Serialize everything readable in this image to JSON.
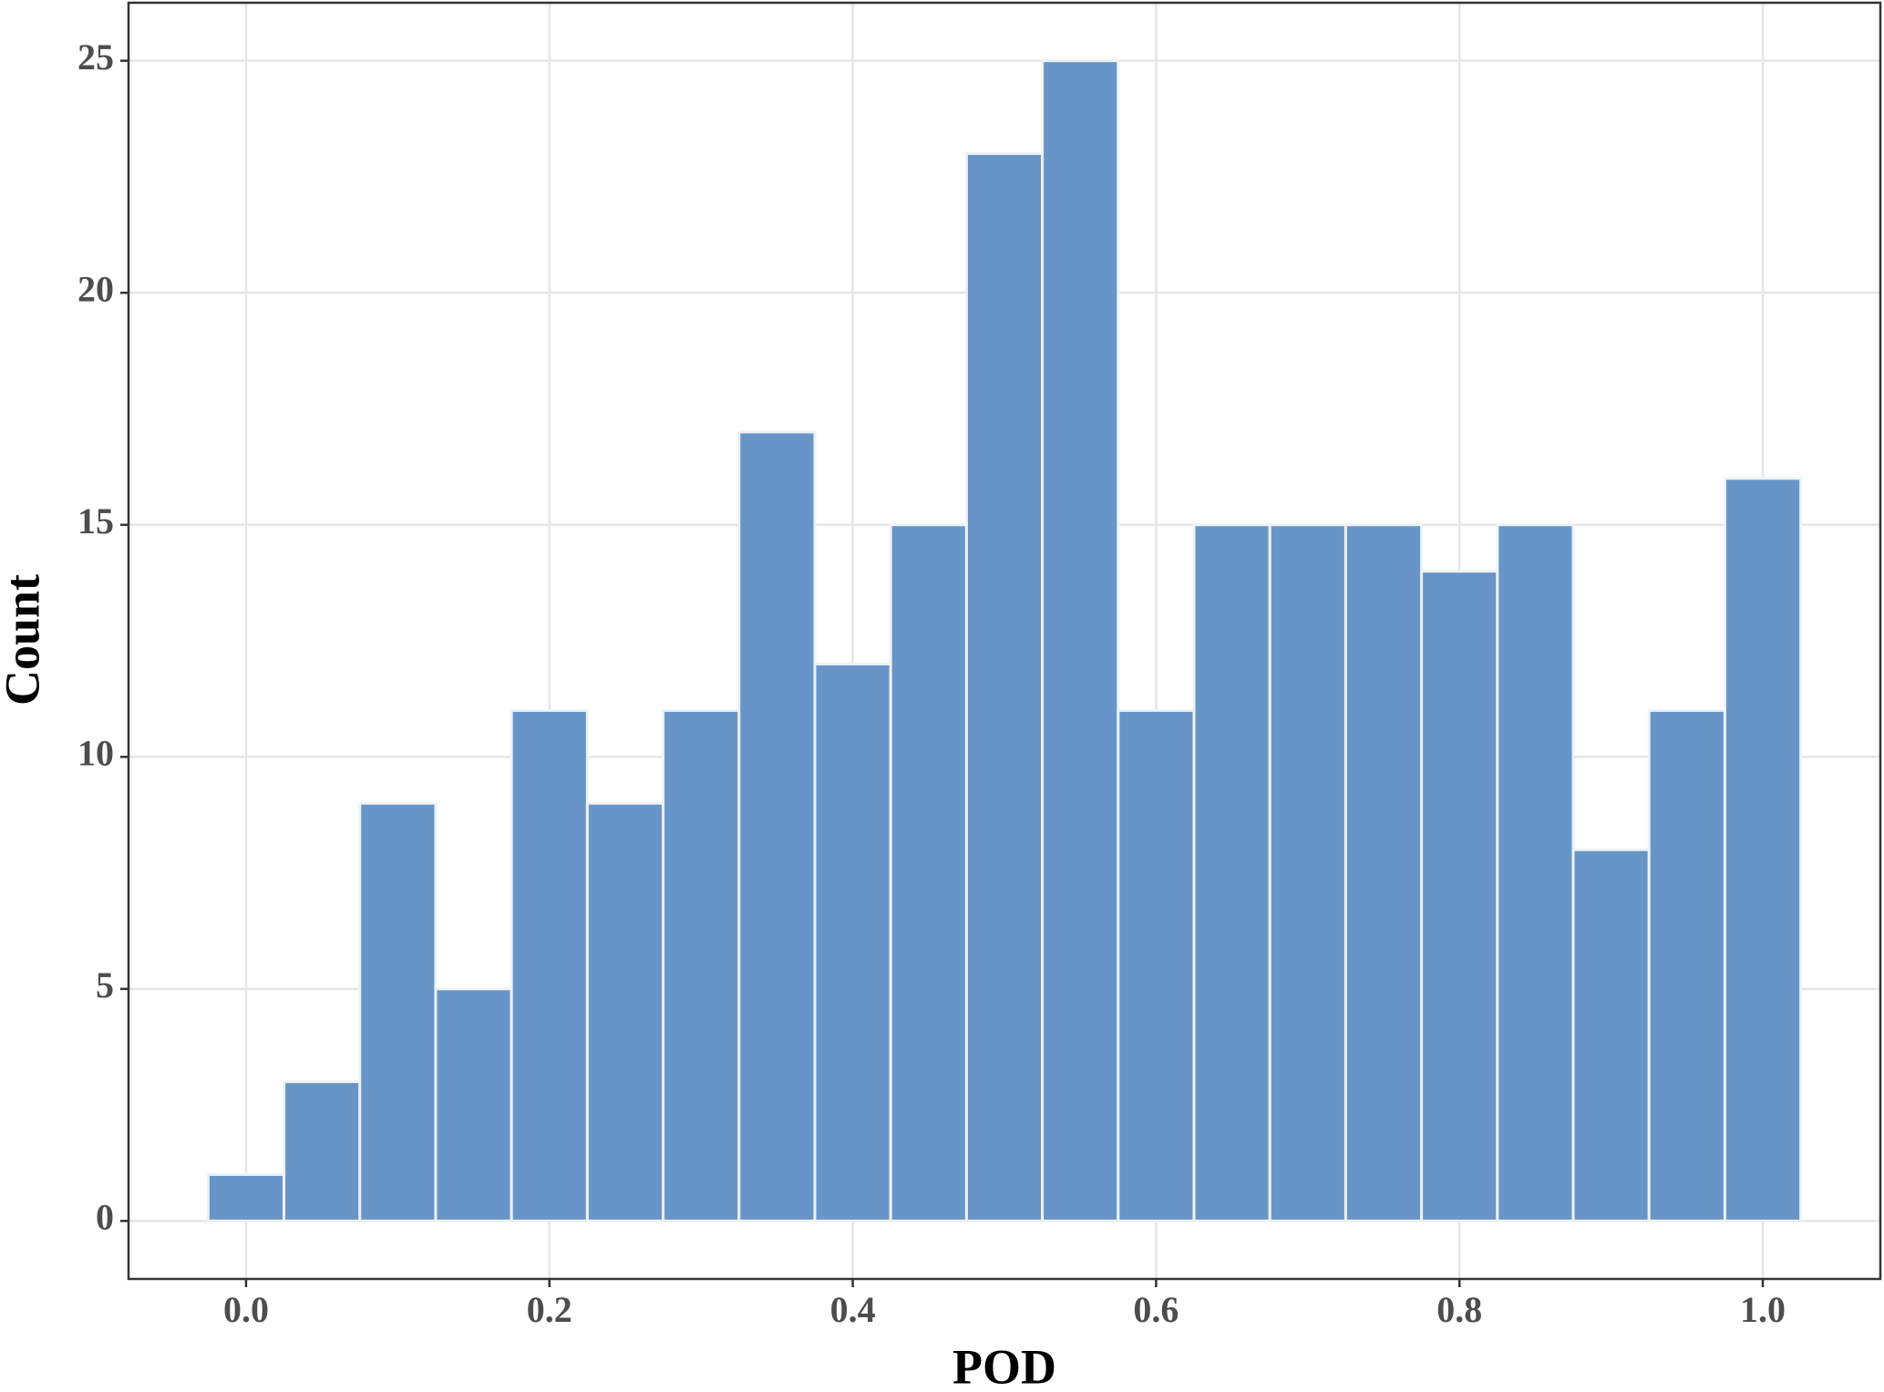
{
  "chart_data": {
    "type": "histogram",
    "x_label": "POD",
    "y_label": "Count",
    "bins": [
      -0.025,
      0.025,
      0.075,
      0.125,
      0.175,
      0.225,
      0.275,
      0.325,
      0.375,
      0.425,
      0.475,
      0.525,
      0.575,
      0.625,
      0.675,
      0.725,
      0.775,
      0.825,
      0.875,
      0.925,
      0.975,
      1.025
    ],
    "values": [
      1,
      3,
      9,
      5,
      11,
      9,
      11,
      17,
      12,
      15,
      23,
      25,
      11,
      15,
      15,
      15,
      14,
      15,
      8,
      11,
      16
    ],
    "color": "#6795c8",
    "xlim": [
      -0.0775,
      1.0775
    ],
    "ylim": [
      -1.25,
      26.25
    ],
    "xticks": [
      {
        "value": 0,
        "label": "0.0"
      },
      {
        "value": 0.2,
        "label": "0.2"
      },
      {
        "value": 0.4,
        "label": "0.4"
      },
      {
        "value": 0.6,
        "label": "0.6"
      },
      {
        "value": 0.8,
        "label": "0.8"
      },
      {
        "value": 1,
        "label": "1.0"
      }
    ],
    "yticks": [
      0,
      5,
      10,
      15,
      20,
      25
    ],
    "grid": true
  }
}
